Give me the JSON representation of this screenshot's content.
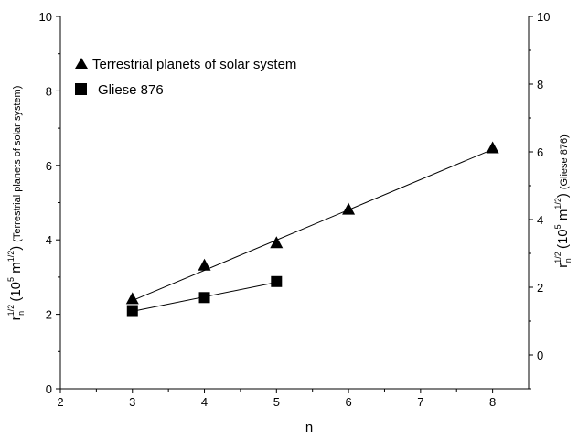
{
  "chart_data": {
    "type": "scatter",
    "xlabel": "n",
    "x_ticks": [
      "2",
      "3",
      "4",
      "5",
      "6",
      "7",
      "8"
    ],
    "xlim": [
      2,
      8.5
    ],
    "left_axis": {
      "ylim": [
        0,
        10
      ],
      "ticks": [
        "0",
        "2",
        "4",
        "6",
        "8",
        "10"
      ],
      "label": {
        "base": "r",
        "sub": "n",
        "sup": "1/2",
        "units_open": "  (10",
        "units_exp": "5",
        "units_m": " m",
        "units_m_exp": "1/2",
        "units_close": ")",
        "note": "(Terrestrial planets of solar system)"
      }
    },
    "right_axis": {
      "ylim": [
        -1,
        10
      ],
      "ticks": [
        "0",
        "2",
        "4",
        "6",
        "8",
        "10"
      ],
      "label": {
        "base": "r",
        "sub": "n",
        "sup": "1/2",
        "units_open": "  (10",
        "units_exp": "5",
        "units_m": " m",
        "units_m_exp": "1/2",
        "units_close": ")",
        "note": "(Gliese 876)"
      }
    },
    "series": [
      {
        "name": "Terrestrial planets of solar system",
        "marker": "triangle",
        "axis": "left",
        "points": [
          {
            "x": 3,
            "y": 2.4
          },
          {
            "x": 4,
            "y": 3.3
          },
          {
            "x": 5,
            "y": 3.9
          },
          {
            "x": 6,
            "y": 4.8
          },
          {
            "x": 8,
            "y": 6.45
          }
        ],
        "fit": {
          "x": [
            3,
            8
          ],
          "y": [
            2.37,
            6.43
          ]
        }
      },
      {
        "name": "Gliese 876",
        "marker": "square",
        "axis": "left",
        "points": [
          {
            "x": 3,
            "y": 2.1
          },
          {
            "x": 4,
            "y": 2.45
          },
          {
            "x": 5,
            "y": 2.88
          }
        ],
        "fit": {
          "x": [
            3,
            5
          ],
          "y": [
            2.08,
            2.86
          ]
        }
      }
    ],
    "legend": {
      "placement": "top-left"
    },
    "grid": false,
    "color": "#000000"
  }
}
